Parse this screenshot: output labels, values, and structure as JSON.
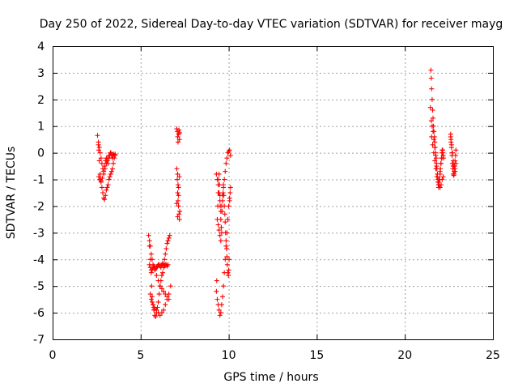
{
  "chart_data": {
    "type": "scatter",
    "title": "Day 250 of 2022, Sidereal Day-to-day VTEC variation (SDTVAR) for receiver mayg",
    "xlabel": "GPS time / hours",
    "ylabel": "SDTVAR / TECUs",
    "xlim": [
      0,
      25
    ],
    "ylim": [
      -7,
      4
    ],
    "xticks": [
      "0",
      "5",
      "10",
      "15",
      "20",
      "25"
    ],
    "yticks": [
      "4",
      "3",
      "2",
      "1",
      "0",
      "-1",
      "-2",
      "-3",
      "-4",
      "-5",
      "-6",
      "-7"
    ],
    "grid": true,
    "marker": "+",
    "color": "#ff0000",
    "series": [
      {
        "name": "SDTVAR",
        "x": [
          2.55,
          2.6,
          2.62,
          2.65,
          2.7,
          2.75,
          2.8,
          2.85,
          2.9,
          2.95,
          3.0,
          3.05,
          3.1,
          3.15,
          3.2,
          3.25,
          3.3,
          3.35,
          3.4,
          3.45,
          3.5,
          3.55,
          2.6,
          2.65,
          2.7,
          2.75,
          2.8,
          2.85,
          2.9,
          2.95,
          3.0,
          3.05,
          3.1,
          3.15,
          3.2,
          3.25,
          3.3,
          3.35,
          3.4,
          3.45,
          2.62,
          2.68,
          2.75,
          2.82,
          2.9,
          2.98,
          3.05,
          3.12,
          3.2,
          3.28,
          3.35,
          3.42,
          3.5,
          3.55,
          5.45,
          5.5,
          5.55,
          5.6,
          5.62,
          5.65,
          5.7,
          5.75,
          5.8,
          5.85,
          5.9,
          5.95,
          6.0,
          6.05,
          6.1,
          6.15,
          6.2,
          6.25,
          6.3,
          6.35,
          6.4,
          6.45,
          6.5,
          6.55,
          6.6,
          6.65,
          5.5,
          5.55,
          5.6,
          5.65,
          5.7,
          5.75,
          5.8,
          5.85,
          5.9,
          5.95,
          6.0,
          6.05,
          6.1,
          6.15,
          6.2,
          6.25,
          6.3,
          6.35,
          6.4,
          6.45,
          6.5,
          6.55,
          5.55,
          5.6,
          5.65,
          5.7,
          5.75,
          5.8,
          5.9,
          6.0,
          6.1,
          6.2,
          6.3,
          6.4,
          6.5,
          6.6,
          6.7,
          5.5,
          5.55,
          5.6,
          5.65,
          5.7,
          5.8,
          5.9,
          6.0,
          6.1,
          6.2,
          6.3,
          6.4,
          6.5,
          6.6,
          7.05,
          7.08,
          7.1,
          7.12,
          7.15,
          7.18,
          7.2,
          7.22,
          7.05,
          7.08,
          7.1,
          7.12,
          7.15,
          7.18,
          7.2,
          7.22,
          7.1,
          7.12,
          7.15,
          7.05,
          7.1,
          7.15,
          7.2,
          9.3,
          9.32,
          9.35,
          9.38,
          9.4,
          9.42,
          9.45,
          9.48,
          9.5,
          9.52,
          9.55,
          9.58,
          9.6,
          9.62,
          9.65,
          9.68,
          9.7,
          9.72,
          9.75,
          9.78,
          9.8,
          9.82,
          9.85,
          9.88,
          9.9,
          9.92,
          9.95,
          9.98,
          10.0,
          10.02,
          10.05,
          10.08,
          10.1,
          9.35,
          9.4,
          9.45,
          9.5,
          9.55,
          9.6,
          9.65,
          9.7,
          9.75,
          9.8,
          9.85,
          9.9,
          9.95,
          10.0,
          10.05,
          9.3,
          9.35,
          9.4,
          9.45,
          9.5,
          9.55,
          9.6,
          9.65,
          9.7,
          9.75,
          9.8,
          9.85,
          9.9,
          9.95,
          10.0,
          10.05,
          10.1,
          9.4,
          9.45,
          9.5,
          9.55,
          21.45,
          21.48,
          21.5,
          21.52,
          21.55,
          21.58,
          21.6,
          21.62,
          21.65,
          21.68,
          21.7,
          21.72,
          21.75,
          21.78,
          21.8,
          21.82,
          21.85,
          21.88,
          21.9,
          21.92,
          21.95,
          21.98,
          22.0,
          22.02,
          22.05,
          22.08,
          22.1,
          22.12,
          22.15,
          22.18,
          22.2,
          21.5,
          21.55,
          21.6,
          21.65,
          21.7,
          21.75,
          21.8,
          21.85,
          21.9,
          21.95,
          22.0,
          22.05,
          22.1,
          22.15,
          21.52,
          21.58,
          21.64,
          21.7,
          21.76,
          21.82,
          21.88,
          21.94,
          22.0,
          22.06,
          22.12,
          22.18,
          22.6,
          22.62,
          22.65,
          22.68,
          22.7,
          22.72,
          22.75,
          22.78,
          22.8,
          22.82,
          22.85,
          22.88,
          22.9,
          22.6,
          22.65,
          22.7,
          22.75,
          22.8,
          22.85,
          22.9,
          22.62,
          22.68,
          22.74,
          22.8,
          22.86
        ],
        "y": [
          0.65,
          0.4,
          0.1,
          -0.3,
          -0.8,
          -1.1,
          -1.3,
          -1.5,
          -1.7,
          -1.75,
          -1.6,
          -1.4,
          -1.3,
          -1.2,
          -1.0,
          -0.9,
          -0.8,
          -0.7,
          -0.6,
          -0.4,
          -0.2,
          -0.1,
          0.3,
          0.2,
          0.0,
          -0.2,
          -0.4,
          -0.6,
          -0.7,
          -0.5,
          -0.3,
          -0.2,
          -0.3,
          -0.4,
          -0.2,
          -0.1,
          0.0,
          -0.1,
          -0.2,
          -0.05,
          -0.9,
          -1.0,
          -1.05,
          -0.95,
          -0.8,
          -0.6,
          -0.4,
          -0.2,
          -0.1,
          0.0,
          -0.05,
          -0.1,
          -0.1,
          -0.05,
          -3.1,
          -3.5,
          -4.0,
          -4.5,
          -5.0,
          -5.4,
          -5.7,
          -5.9,
          -6.1,
          -6.15,
          -6.0,
          -5.8,
          -5.6,
          -5.3,
          -5.0,
          -4.8,
          -4.6,
          -4.5,
          -4.3,
          -4.0,
          -3.8,
          -3.6,
          -3.4,
          -3.3,
          -3.2,
          -3.1,
          -4.2,
          -4.3,
          -4.4,
          -4.4,
          -4.3,
          -4.25,
          -4.3,
          -4.35,
          -4.3,
          -4.25,
          -4.2,
          -4.2,
          -4.25,
          -4.3,
          -4.2,
          -4.15,
          -4.2,
          -4.25,
          -4.2,
          -4.2,
          -4.25,
          -4.2,
          -5.3,
          -5.5,
          -5.6,
          -5.7,
          -5.8,
          -5.85,
          -5.9,
          -6.0,
          -6.1,
          -6.0,
          -5.9,
          -5.7,
          -5.5,
          -5.3,
          -5.0,
          -3.3,
          -3.5,
          -3.8,
          -4.0,
          -4.2,
          -4.4,
          -4.6,
          -4.8,
          -5.0,
          -5.1,
          -5.2,
          -5.3,
          -5.4,
          -5.5,
          0.9,
          0.8,
          0.6,
          0.4,
          0.7,
          0.85,
          0.5,
          0.75,
          -0.6,
          -1.0,
          -1.5,
          -1.8,
          -2.0,
          -2.3,
          -2.5,
          -2.2,
          -0.8,
          -1.2,
          -1.6,
          -1.9,
          -2.4,
          -1.3,
          -0.9,
          -5.2,
          -4.8,
          -2.5,
          -2.0,
          -1.5,
          -1.0,
          -0.8,
          -1.2,
          -1.6,
          -2.0,
          -2.5,
          -2.8,
          -3.0,
          -2.2,
          -1.8,
          -1.5,
          -1.2,
          -1.6,
          -2.0,
          -2.3,
          -2.6,
          -3.0,
          -3.3,
          -3.6,
          -3.9,
          -4.2,
          -4.5,
          -4.6,
          -4.4,
          -4.0,
          -1.7,
          -1.5,
          -1.3,
          -5.5,
          -5.7,
          -5.9,
          -6.1,
          -6.0,
          -5.7,
          -5.4,
          -5.0,
          -4.5,
          -4.0,
          -3.5,
          -3.0,
          -2.5,
          -2.0,
          -1.8,
          -0.8,
          -1.0,
          -1.2,
          -1.5,
          -1.8,
          -2.2,
          -2.0,
          -1.6,
          -1.3,
          -1.0,
          -0.7,
          -0.4,
          -0.2,
          0.0,
          0.05,
          0.1,
          -0.1,
          -2.7,
          -2.9,
          -3.1,
          -3.3,
          1.7,
          3.1,
          2.8,
          2.4,
          2.0,
          1.6,
          1.3,
          1.0,
          0.8,
          0.6,
          0.4,
          0.2,
          0.0,
          -0.2,
          -0.4,
          -0.6,
          -0.8,
          -1.0,
          -1.2,
          -1.3,
          -1.2,
          -1.0,
          -0.8,
          -0.6,
          -0.4,
          -0.2,
          0.0,
          0.1,
          0.0,
          -0.1,
          -0.2,
          1.2,
          1.0,
          0.8,
          0.5,
          0.2,
          -0.1,
          -0.5,
          -0.9,
          -1.1,
          -1.0,
          -0.7,
          -0.4,
          -0.2,
          0.1,
          0.6,
          0.3,
          0.0,
          -0.3,
          -0.6,
          -0.9,
          -1.1,
          -1.2,
          -1.3,
          -1.2,
          -1.0,
          -0.9,
          0.7,
          0.5,
          0.2,
          -0.1,
          -0.4,
          -0.6,
          -0.8,
          -0.85,
          -0.7,
          -0.5,
          -0.3,
          -0.1,
          0.1,
          0.6,
          0.3,
          0.0,
          -0.3,
          -0.5,
          -0.6,
          -0.4,
          0.4,
          0.0,
          -0.5,
          -0.8,
          -0.7
        ]
      }
    ]
  }
}
